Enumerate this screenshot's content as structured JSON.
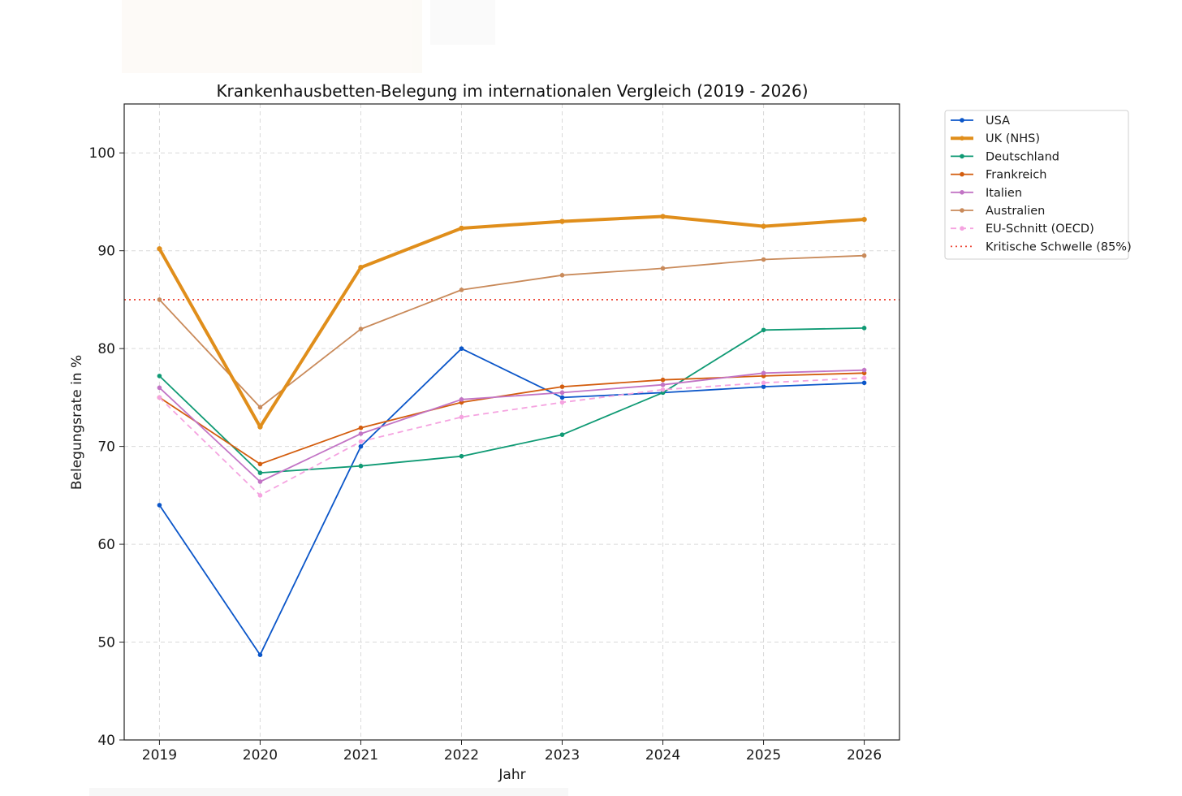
{
  "chart_data": {
    "type": "line",
    "title": "Krankenhausbetten-Belegung im internationalen Vergleich (2019 - 2026)",
    "xlabel": "Jahr",
    "ylabel": "Belegungsrate in %",
    "x": [
      2019,
      2020,
      2021,
      2022,
      2023,
      2024,
      2025,
      2026
    ],
    "xlim": [
      2018.65,
      2026.35
    ],
    "ylim": [
      40,
      105
    ],
    "yticks": [
      40,
      50,
      60,
      70,
      80,
      90,
      100
    ],
    "grid": true,
    "legend_position": "outside-right-top",
    "series": [
      {
        "name": "USA",
        "color": "#0b56c9",
        "style": "solid",
        "weight": "normal",
        "marker": true,
        "values": [
          64.0,
          48.7,
          70.0,
          80.0,
          75.0,
          75.5,
          76.1,
          76.5
        ]
      },
      {
        "name": "UK (NHS)",
        "color": "#e08e1b",
        "style": "solid",
        "weight": "bold",
        "marker": true,
        "values": [
          90.2,
          72.0,
          88.3,
          92.3,
          93.0,
          93.5,
          92.5,
          93.2
        ]
      },
      {
        "name": "Deutschland",
        "color": "#0f9a74",
        "style": "solid",
        "weight": "normal",
        "marker": true,
        "values": [
          77.2,
          67.3,
          68.0,
          69.0,
          71.2,
          75.5,
          81.9,
          82.1
        ]
      },
      {
        "name": "Frankreich",
        "color": "#d35d0e",
        "style": "solid",
        "weight": "normal",
        "marker": true,
        "values": [
          75.0,
          68.2,
          71.9,
          74.5,
          76.1,
          76.8,
          77.2,
          77.5
        ]
      },
      {
        "name": "Italien",
        "color": "#c274c5",
        "style": "solid",
        "weight": "normal",
        "marker": true,
        "values": [
          76.0,
          66.4,
          71.3,
          74.8,
          75.5,
          76.3,
          77.5,
          77.8
        ]
      },
      {
        "name": "Australien",
        "color": "#c98a5a",
        "style": "solid",
        "weight": "normal",
        "marker": true,
        "values": [
          85.0,
          74.0,
          82.0,
          86.0,
          87.5,
          88.2,
          89.1,
          89.5
        ]
      },
      {
        "name": "EU-Schnitt (OECD)",
        "color": "#f5a3e0",
        "style": "dashed",
        "weight": "normal",
        "marker": true,
        "values": [
          75.0,
          65.0,
          70.5,
          73.0,
          74.5,
          75.8,
          76.5,
          77.0
        ]
      }
    ],
    "reference_lines": [
      {
        "name": "Kritische Schwelle (85%)",
        "value": 85,
        "color": "#ee4a3a",
        "style": "dotted"
      }
    ]
  }
}
